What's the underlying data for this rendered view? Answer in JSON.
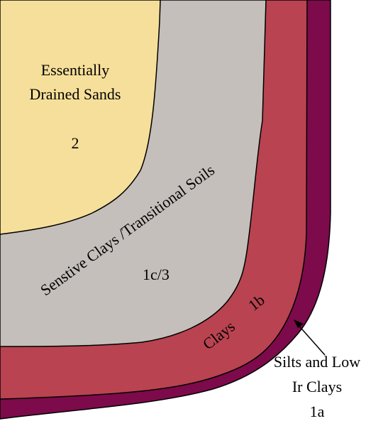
{
  "zones": [
    {
      "id": "zone-2",
      "color": "#f6df9a",
      "text": {
        "line1": "Essentially",
        "line2": "Drained Sands",
        "code": "2"
      }
    },
    {
      "id": "zone-1c3",
      "color": "#c4bfbb",
      "text": {
        "name": "Senstive Clays /Transitional Soils",
        "code": "1c/3"
      }
    },
    {
      "id": "zone-1b",
      "color": "#b94350",
      "text": {
        "name": "Clays",
        "code": "1b"
      }
    },
    {
      "id": "zone-1a",
      "color": "#7d0a4b",
      "text": {
        "line1": "Silts and Low",
        "line2": "Ir Clays",
        "code": "1a"
      }
    }
  ],
  "background_color": "#ffffff",
  "outline_color": "#000000"
}
